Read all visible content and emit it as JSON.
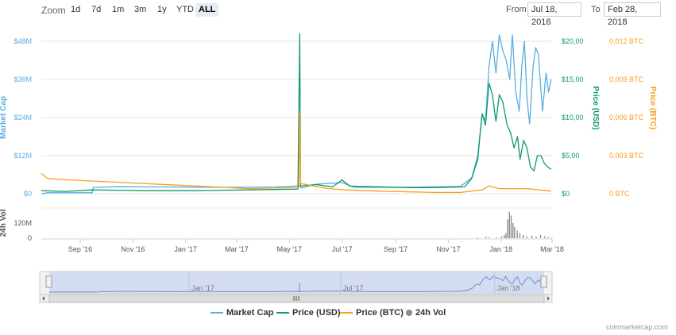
{
  "toolbar": {
    "zoom_label": "Zoom",
    "zoom_buttons": [
      "1d",
      "7d",
      "1m",
      "3m",
      "1y",
      "YTD",
      "ALL"
    ],
    "active_zoom": "ALL",
    "from_label": "From",
    "from_value": "Jul 18, 2016",
    "to_label": "To",
    "to_value": "Feb 28, 2018"
  },
  "colors": {
    "market_cap": "#5aaee0",
    "price_usd": "#0f9a6e",
    "price_btc": "#f7a01a",
    "volume": "#8c8c8c",
    "navigator_fill": "#d0daf0"
  },
  "chart_data": {
    "type": "line",
    "x_tick_labels": [
      "Sep '16",
      "Nov '16",
      "Jan '17",
      "Mar '17",
      "May '17",
      "Jul '17",
      "Sep '17",
      "Nov '17",
      "Jan '18",
      "Mar '18"
    ],
    "axes": {
      "market_cap": {
        "label": "Market Cap",
        "ticks": [
          "$0",
          "$12M",
          "$24M",
          "$36M",
          "$48M"
        ],
        "range": [
          0,
          48
        ]
      },
      "price_usd": {
        "label": "Price (USD)",
        "ticks": [
          "$0",
          "$5,00",
          "$10,00",
          "$15,00",
          "$20,00"
        ],
        "range": [
          0,
          20
        ]
      },
      "price_btc": {
        "label": "Price (BTC)",
        "ticks": [
          "0 BTC",
          "0,003 BTC",
          "0,006 BTC",
          "0,009 BTC",
          "0,012 BTC"
        ],
        "range": [
          0,
          0.012
        ]
      },
      "volume": {
        "label": "24h Vol",
        "ticks": [
          "0",
          "120M"
        ],
        "range": [
          0,
          240
        ]
      }
    },
    "series": [
      {
        "name": "Market Cap",
        "axis": "market_cap",
        "units": "USD millions",
        "points": [
          [
            "2016-07-18",
            0
          ],
          [
            "2016-07-25",
            0.3
          ],
          [
            "2016-09-15",
            0.3
          ],
          [
            "2016-09-16",
            2.0
          ],
          [
            "2016-10-15",
            2.2
          ],
          [
            "2016-12-15",
            2.1
          ],
          [
            "2017-02-15",
            2.0
          ],
          [
            "2017-04-15",
            2.1
          ],
          [
            "2017-05-13",
            2.5
          ],
          [
            "2017-05-15",
            1.8
          ],
          [
            "2017-06-01",
            3.0
          ],
          [
            "2017-07-01",
            3.5
          ],
          [
            "2017-07-15",
            2.0
          ],
          [
            "2017-09-01",
            2.0
          ],
          [
            "2017-10-01",
            2.1
          ],
          [
            "2017-11-15",
            2.3
          ],
          [
            "2017-11-28",
            5
          ],
          [
            "2017-12-05",
            12
          ],
          [
            "2017-12-10",
            25
          ],
          [
            "2017-12-14",
            23
          ],
          [
            "2017-12-18",
            40
          ],
          [
            "2017-12-22",
            48
          ],
          [
            "2017-12-26",
            38
          ],
          [
            "2017-12-30",
            50
          ],
          [
            "2018-01-03",
            45
          ],
          [
            "2018-01-07",
            42
          ],
          [
            "2018-01-11",
            36
          ],
          [
            "2018-01-14",
            50
          ],
          [
            "2018-01-18",
            32
          ],
          [
            "2018-01-22",
            26
          ],
          [
            "2018-01-25",
            40
          ],
          [
            "2018-01-28",
            48
          ],
          [
            "2018-01-31",
            30
          ],
          [
            "2018-02-03",
            22
          ],
          [
            "2018-02-07",
            40
          ],
          [
            "2018-02-10",
            46
          ],
          [
            "2018-02-13",
            44
          ],
          [
            "2018-02-18",
            26
          ],
          [
            "2018-02-22",
            38
          ],
          [
            "2018-02-25",
            32
          ],
          [
            "2018-02-28",
            36
          ]
        ]
      },
      {
        "name": "Price (USD)",
        "axis": "price_usd",
        "units": "USD",
        "points": [
          [
            "2016-07-18",
            0.4
          ],
          [
            "2016-08-15",
            0.3
          ],
          [
            "2016-09-16",
            0.5
          ],
          [
            "2016-11-15",
            0.4
          ],
          [
            "2017-01-15",
            0.4
          ],
          [
            "2017-03-15",
            0.5
          ],
          [
            "2017-05-11",
            0.6
          ],
          [
            "2017-05-13",
            21.0
          ],
          [
            "2017-05-14",
            1.0
          ],
          [
            "2017-06-01",
            1.2
          ],
          [
            "2017-06-20",
            0.9
          ],
          [
            "2017-07-01",
            1.8
          ],
          [
            "2017-07-10",
            1.0
          ],
          [
            "2017-08-15",
            0.9
          ],
          [
            "2017-09-15",
            0.8
          ],
          [
            "2017-10-15",
            0.8
          ],
          [
            "2017-11-20",
            0.9
          ],
          [
            "2017-11-28",
            2.0
          ],
          [
            "2017-12-05",
            4.5
          ],
          [
            "2017-12-10",
            10.5
          ],
          [
            "2017-12-14",
            9.0
          ],
          [
            "2017-12-18",
            14.5
          ],
          [
            "2017-12-22",
            13.0
          ],
          [
            "2017-12-26",
            9.5
          ],
          [
            "2017-12-30",
            13.0
          ],
          [
            "2018-01-03",
            12.0
          ],
          [
            "2018-01-08",
            9.0
          ],
          [
            "2018-01-12",
            8.0
          ],
          [
            "2018-01-16",
            6.0
          ],
          [
            "2018-01-20",
            7.5
          ],
          [
            "2018-01-23",
            4.5
          ],
          [
            "2018-01-27",
            7.0
          ],
          [
            "2018-01-31",
            6.0
          ],
          [
            "2018-02-04",
            3.5
          ],
          [
            "2018-02-08",
            3.0
          ],
          [
            "2018-02-12",
            5.0
          ],
          [
            "2018-02-16",
            5.0
          ],
          [
            "2018-02-20",
            4.0
          ],
          [
            "2018-02-24",
            3.5
          ],
          [
            "2018-02-28",
            3.2
          ]
        ]
      },
      {
        "name": "Price (BTC)",
        "axis": "price_btc",
        "units": "BTC",
        "points": [
          [
            "2016-07-18",
            0.0016
          ],
          [
            "2016-07-25",
            0.0012
          ],
          [
            "2016-08-15",
            0.0011
          ],
          [
            "2016-10-15",
            0.0009
          ],
          [
            "2016-12-15",
            0.0007
          ],
          [
            "2017-01-15",
            0.0006
          ],
          [
            "2017-03-15",
            0.0004
          ],
          [
            "2017-05-12",
            0.0005
          ],
          [
            "2017-05-13",
            0.0065
          ],
          [
            "2017-05-14",
            0.0008
          ],
          [
            "2017-06-15",
            0.0004
          ],
          [
            "2017-07-05",
            0.0003
          ],
          [
            "2017-08-15",
            0.0002
          ],
          [
            "2017-10-15",
            0.0001
          ],
          [
            "2017-11-15",
            0.0001
          ],
          [
            "2017-12-10",
            0.0003
          ],
          [
            "2017-12-18",
            0.0006
          ],
          [
            "2017-12-30",
            0.0004
          ],
          [
            "2018-01-15",
            0.0004
          ],
          [
            "2018-02-01",
            0.0004
          ],
          [
            "2018-02-28",
            0.0002
          ]
        ]
      },
      {
        "name": "24h Vol",
        "axis": "volume",
        "units": "USD millions",
        "bars": [
          [
            "2017-12-04",
            6
          ],
          [
            "2017-12-14",
            10
          ],
          [
            "2017-12-18",
            8
          ],
          [
            "2017-12-26",
            6
          ],
          [
            "2018-01-01",
            15
          ],
          [
            "2018-01-04",
            22
          ],
          [
            "2018-01-06",
            40
          ],
          [
            "2018-01-08",
            150
          ],
          [
            "2018-01-10",
            210
          ],
          [
            "2018-01-12",
            180
          ],
          [
            "2018-01-14",
            120
          ],
          [
            "2018-01-16",
            90
          ],
          [
            "2018-01-19",
            60
          ],
          [
            "2018-01-22",
            40
          ],
          [
            "2018-01-26",
            25
          ],
          [
            "2018-01-30",
            15
          ],
          [
            "2018-02-05",
            20
          ],
          [
            "2018-02-10",
            12
          ],
          [
            "2018-02-15",
            25
          ],
          [
            "2018-02-20",
            15
          ],
          [
            "2018-02-24",
            8
          ],
          [
            "2018-02-28",
            4
          ]
        ]
      }
    ],
    "navigator": {
      "labels": [
        "Jan '17",
        "Jul '17",
        "Jan '18"
      ]
    }
  },
  "legend": [
    {
      "label": "Market Cap",
      "key": "market_cap",
      "style": "line"
    },
    {
      "label": "Price (USD)",
      "key": "price_usd",
      "style": "line"
    },
    {
      "label": "Price (BTC)",
      "key": "price_btc",
      "style": "line"
    },
    {
      "label": "24h Vol",
      "key": "volume",
      "style": "dot"
    }
  ],
  "credit": "coinmarketcap.com"
}
